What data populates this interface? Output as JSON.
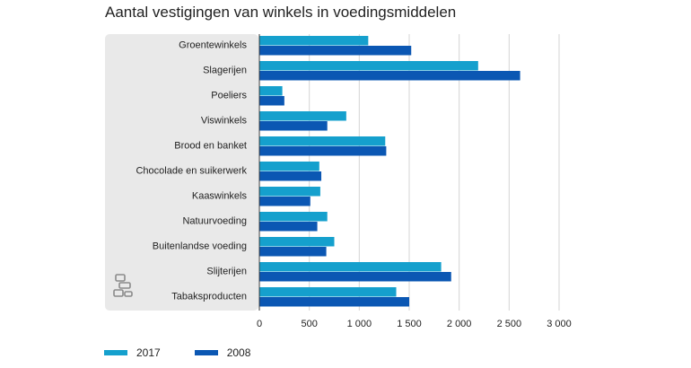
{
  "chart_data": {
    "type": "bar",
    "orientation": "horizontal",
    "title": "Aantal vestigingen van winkels in voedingsmiddelen",
    "categories": [
      "Groentewinkels",
      "Slagerijen",
      "Poeliers",
      "Viswinkels",
      "Brood en banket",
      "Chocolade en suikerwerk",
      "Kaaswinkels",
      "Natuurvoeding",
      "Buitenlandse voeding",
      "Slijterijen",
      "Tabaksproducten"
    ],
    "series": [
      {
        "name": "2017",
        "color": "#15a0cd",
        "values": [
          1090,
          2190,
          230,
          870,
          1260,
          600,
          610,
          680,
          750,
          1820,
          1370
        ]
      },
      {
        "name": "2008",
        "color": "#0b57b3",
        "values": [
          1520,
          2610,
          250,
          680,
          1270,
          620,
          510,
          580,
          670,
          1920,
          1500
        ]
      }
    ],
    "xlim": [
      0,
      3000
    ],
    "xticks": [
      0,
      500,
      1000,
      1500,
      2000,
      2500,
      3000
    ],
    "xtick_labels": [
      "0",
      "500",
      "1 000",
      "1 500",
      "2 000",
      "2 500",
      "3 000"
    ],
    "grid": true,
    "legend_position": "bottom-left"
  },
  "logo": {
    "name": "cbs-logo"
  }
}
